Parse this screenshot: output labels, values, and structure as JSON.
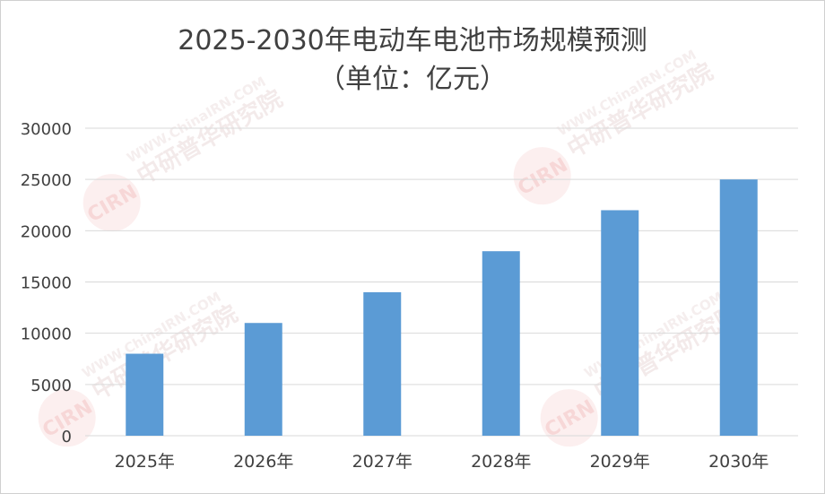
{
  "chart_data": {
    "type": "bar",
    "title": "2025-2030年电动车电池市场规模预测",
    "subtitle": "（单位：亿元）",
    "categories": [
      "2025年",
      "2026年",
      "2027年",
      "2028年",
      "2029年",
      "2030年"
    ],
    "series": [
      {
        "values": [
          8000,
          11000,
          14000,
          18000,
          22000,
          25000
        ]
      }
    ],
    "ylim": [
      0,
      30000
    ],
    "yticks": [
      "0",
      "5000",
      "10000",
      "15000",
      "20000",
      "25000",
      "30000"
    ],
    "grid": true,
    "legend": "none",
    "xlabel": "",
    "ylabel": "",
    "bar_color": "#5B9BD5",
    "grid_color": "#d9d9d9",
    "text_color": "#404040"
  },
  "watermark": {
    "text": "WWW.ChinaIRN.COM 中研普华研究院",
    "logo": "CIRN"
  }
}
